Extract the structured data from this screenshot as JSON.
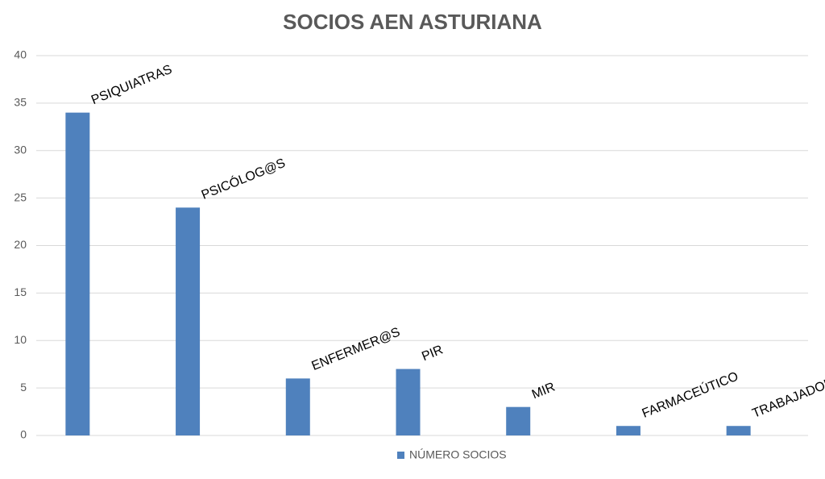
{
  "chart_data": {
    "type": "bar",
    "title": "SOCIOS AEN ASTURIANA",
    "categories": [
      "PSIQUIATRAS",
      "PSICÓLOG@S",
      "ENFERMER@S",
      "PIR",
      "MIR",
      "FARMACEÚTICO",
      "TRABAJADORA SOCIAL"
    ],
    "series": [
      {
        "name": "NÚMERO SOCIOS",
        "color": "#4f81bd",
        "values": [
          34,
          24,
          6,
          7,
          3,
          1,
          1
        ]
      }
    ],
    "ylim": [
      0,
      40
    ],
    "yticks": [
      0,
      5,
      10,
      15,
      20,
      25,
      30,
      35,
      40
    ],
    "grid": true,
    "legend": "bottom"
  }
}
